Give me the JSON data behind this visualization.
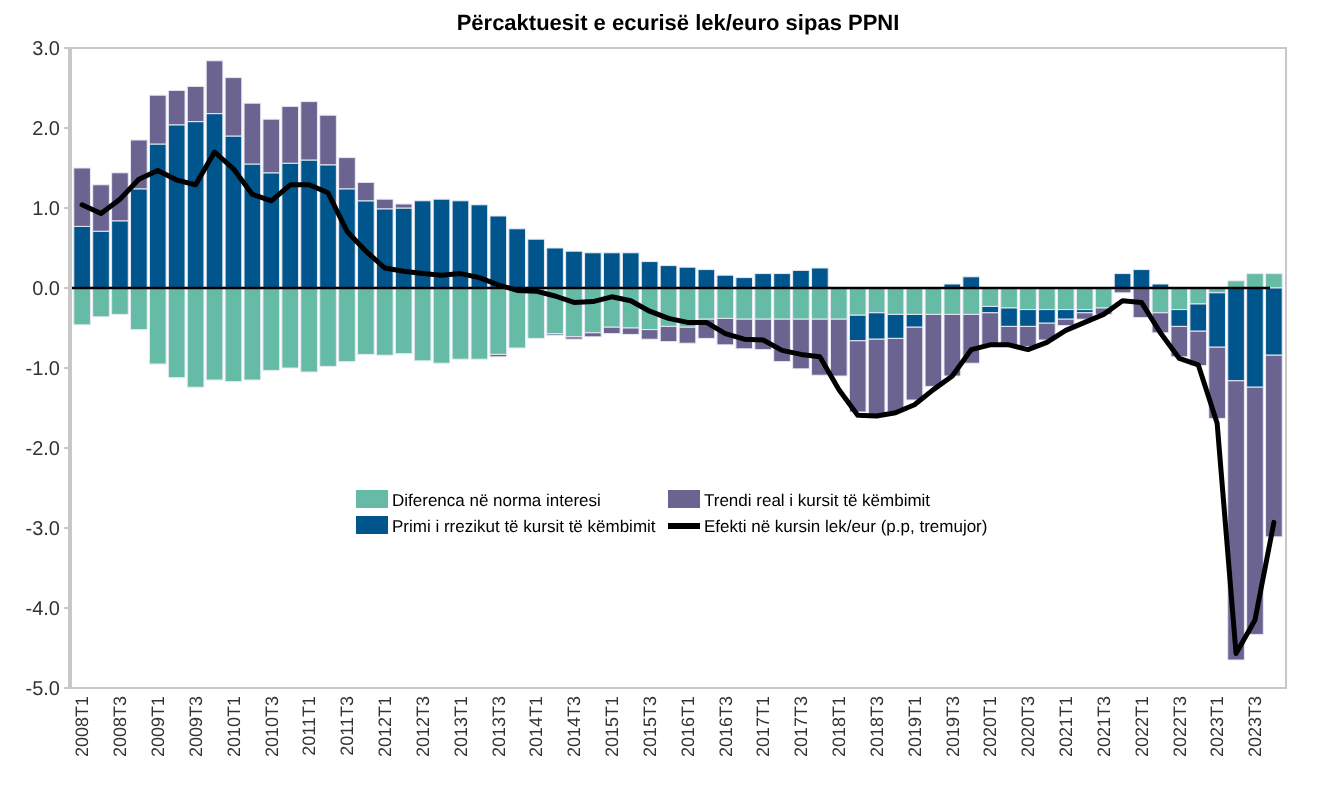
{
  "chart_data": {
    "type": "bar",
    "stacked": true,
    "title": "Përcaktuesit e ecurisë lek/euro sipas PPNI",
    "categories": [
      "2008T1",
      null,
      "2008T3",
      null,
      "2009T1",
      null,
      "2009T3",
      null,
      "2010T1",
      null,
      "2010T3",
      null,
      "2011T1",
      null,
      "2011T3",
      null,
      "2012T1",
      null,
      "2012T3",
      null,
      "2013T1",
      null,
      "2013T3",
      null,
      "2014T1",
      null,
      "2014T3",
      null,
      "2015T1",
      null,
      "2015T3",
      null,
      "2016T1",
      null,
      "2016T3",
      null,
      "2017T1",
      null,
      "2017T3",
      null,
      "2018T1",
      null,
      "2018T3",
      null,
      "2019T1",
      null,
      "2019T3",
      null,
      "2020T1",
      null,
      "2020T3",
      null,
      "2021T1",
      null,
      "2021T3",
      null,
      "2022T1",
      null,
      "2022T3",
      null,
      "2023T1",
      null,
      "2023T3",
      null
    ],
    "series": [
      {
        "name": "Diferenca në norma interesi",
        "color": "#66bba6",
        "values": [
          -0.46,
          -0.36,
          -0.33,
          -0.52,
          -0.95,
          -1.12,
          -1.24,
          -1.15,
          -1.17,
          -1.15,
          -1.03,
          -1.0,
          -1.05,
          -0.98,
          -0.92,
          -0.83,
          -0.84,
          -0.82,
          -0.91,
          -0.94,
          -0.89,
          -0.89,
          -0.83,
          -0.75,
          -0.63,
          -0.57,
          -0.61,
          -0.56,
          -0.49,
          -0.5,
          -0.52,
          -0.48,
          -0.49,
          -0.39,
          -0.38,
          -0.39,
          -0.39,
          -0.39,
          -0.39,
          -0.39,
          -0.39,
          -0.34,
          -0.31,
          -0.33,
          -0.33,
          -0.33,
          -0.33,
          -0.33,
          -0.23,
          -0.25,
          -0.27,
          -0.27,
          -0.27,
          -0.27,
          -0.25,
          null,
          null,
          -0.31,
          -0.27,
          -0.2,
          -0.06,
          0.09,
          0.18,
          0.18
        ]
      },
      {
        "name": "Primi i rrezikut të kursit të këmbimit",
        "color": "#00558c",
        "values": [
          0.77,
          0.71,
          0.84,
          1.24,
          1.8,
          2.04,
          2.08,
          2.18,
          1.9,
          1.55,
          1.44,
          1.56,
          1.6,
          1.54,
          1.24,
          1.09,
          0.99,
          1.0,
          1.09,
          1.11,
          1.09,
          1.04,
          0.9,
          0.74,
          0.61,
          0.5,
          0.46,
          0.44,
          0.44,
          0.44,
          0.33,
          0.28,
          0.26,
          0.23,
          0.16,
          0.13,
          0.18,
          0.18,
          0.22,
          0.25,
          0,
          -0.32,
          -0.33,
          -0.3,
          -0.16,
          null,
          0.05,
          0.14,
          -0.08,
          -0.23,
          -0.21,
          -0.17,
          -0.12,
          -0.04,
          0,
          0.18,
          0.23,
          0.05,
          -0.21,
          -0.34,
          -0.68,
          -1.16,
          -1.24,
          -0.84
        ]
      },
      {
        "name": "Trendi real i kursit të këmbimit",
        "color": "#6b6390",
        "values": [
          0.73,
          0.58,
          0.6,
          0.61,
          0.61,
          0.43,
          0.44,
          0.66,
          0.73,
          0.76,
          0.67,
          0.71,
          0.73,
          0.62,
          0.39,
          0.23,
          0.12,
          0.05,
          0,
          0,
          0,
          null,
          -0.03,
          0,
          0,
          -0.02,
          -0.03,
          -0.05,
          -0.08,
          -0.08,
          -0.12,
          -0.19,
          -0.2,
          -0.24,
          -0.33,
          -0.37,
          -0.38,
          -0.53,
          -0.62,
          -0.7,
          -0.71,
          -0.89,
          -0.96,
          -0.92,
          -0.91,
          -0.9,
          -0.77,
          -0.61,
          -0.41,
          -0.25,
          -0.25,
          -0.21,
          -0.08,
          -0.08,
          -0.08,
          -0.06,
          -0.37,
          -0.25,
          -0.38,
          -0.43,
          -0.89,
          -3.49,
          -3.09,
          -2.27
        ]
      },
      {
        "name": "Efekti në kursin lek/eur (p.p, tremujor)",
        "type": "line",
        "color": "#000000",
        "values": [
          1.04,
          0.93,
          1.11,
          1.36,
          1.47,
          1.35,
          1.29,
          1.7,
          1.49,
          1.17,
          1.09,
          1.29,
          1.29,
          1.19,
          0.71,
          0.46,
          0.25,
          0.21,
          0.18,
          0.16,
          0.18,
          0.13,
          0.04,
          -0.03,
          -0.04,
          -0.1,
          -0.18,
          -0.17,
          -0.11,
          -0.16,
          -0.29,
          -0.38,
          -0.43,
          -0.43,
          -0.57,
          -0.64,
          -0.65,
          -0.78,
          -0.83,
          -0.86,
          -1.27,
          -1.59,
          -1.6,
          -1.56,
          -1.46,
          -1.27,
          -1.1,
          -0.77,
          -0.71,
          -0.71,
          -0.77,
          -0.68,
          -0.53,
          -0.43,
          -0.33,
          -0.16,
          -0.18,
          -0.56,
          -0.88,
          -0.96,
          -1.69,
          -4.57,
          -4.15,
          -2.93
        ]
      }
    ],
    "ylim": [
      -5,
      3
    ],
    "yticks": [
      {
        "value": -5,
        "label": "-5.0"
      },
      {
        "value": -4,
        "label": "-4.0"
      },
      {
        "value": -3,
        "label": "-3.0"
      },
      {
        "value": -2,
        "label": "-2.0"
      },
      {
        "value": -1,
        "label": "-1.0"
      },
      {
        "value": 0,
        "label": "0.0"
      },
      {
        "value": 1,
        "label": "1.0"
      },
      {
        "value": 2,
        "label": "2.0"
      },
      {
        "value": 3,
        "label": "3.0"
      }
    ],
    "legend": "bottom"
  }
}
